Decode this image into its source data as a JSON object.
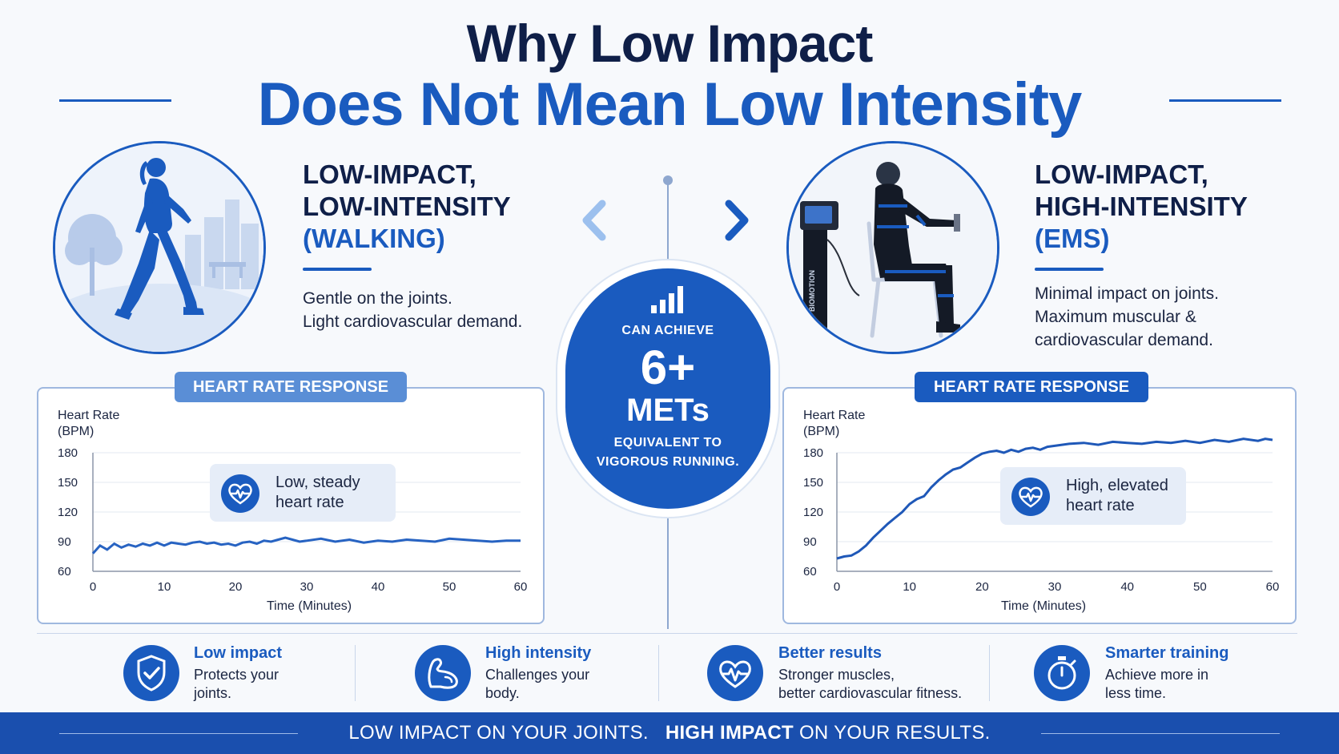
{
  "title": {
    "line1": "Why Low Impact",
    "line2": "Does Not Mean Low Intensity"
  },
  "colors": {
    "primary": "#1a5bbf",
    "navy": "#0f1f48",
    "footer": "#1a4fae"
  },
  "left": {
    "heading_line1": "LOW-IMPACT,",
    "heading_line2": "LOW-INTENSITY",
    "heading_line3": "(WALKING)",
    "text_line1": "Gentle on the joints.",
    "text_line2": "Light cardiovascular demand.",
    "icon": "walking-woman-icon"
  },
  "right": {
    "heading_line1": "LOW-IMPACT,",
    "heading_line2": "HIGH-INTENSITY",
    "heading_line3": "(EMS)",
    "text_line1": "Minimal impact on joints.",
    "text_line2": "Maximum muscular &",
    "text_line3": "cardiovascular demand.",
    "icon": "ems-training-icon",
    "machine_label": "BIOMOTION"
  },
  "center": {
    "line1": "CAN ACHIEVE",
    "big": "6+",
    "mets": "METs",
    "line2": "EQUIVALENT TO",
    "line3": "VIGOROUS RUNNING.",
    "icon": "bar-chart-icon"
  },
  "charts": {
    "left": {
      "tab": "HEART RATE RESPONSE",
      "ylabel_line1": "Heart Rate",
      "ylabel_line2": "(BPM)",
      "xlabel": "Time (Minutes)",
      "callout_line1": "Low, steady",
      "callout_line2": "heart rate",
      "icon": "heart-pulse-icon"
    },
    "right": {
      "tab": "HEART RATE RESPONSE",
      "ylabel_line1": "Heart Rate",
      "ylabel_line2": "(BPM)",
      "xlabel": "Time (Minutes)",
      "callout_line1": "High, elevated",
      "callout_line2": "heart rate",
      "icon": "heart-pulse-icon"
    }
  },
  "chart_data": [
    {
      "type": "line",
      "title": "HEART RATE RESPONSE",
      "xlabel": "Time (Minutes)",
      "ylabel": "Heart Rate (BPM)",
      "xlim": [
        0,
        60
      ],
      "ylim": [
        60,
        180
      ],
      "xticks": [
        0,
        10,
        20,
        30,
        40,
        50,
        60
      ],
      "yticks": [
        60,
        90,
        120,
        150,
        180
      ],
      "series": [
        {
          "x": [
            0,
            1,
            2,
            3,
            4,
            5,
            6,
            7,
            8,
            9,
            10,
            11,
            12,
            13,
            14,
            15,
            16,
            17,
            18,
            19,
            20,
            21,
            22,
            23,
            24,
            25,
            26,
            27,
            28,
            29,
            30,
            32,
            34,
            36,
            38,
            40,
            42,
            44,
            46,
            48,
            50,
            52,
            54,
            56,
            58,
            60
          ],
          "y": [
            78,
            86,
            82,
            88,
            84,
            87,
            85,
            88,
            86,
            89,
            86,
            89,
            88,
            87,
            89,
            90,
            88,
            89,
            87,
            88,
            86,
            89,
            90,
            88,
            91,
            90,
            92,
            94,
            92,
            90,
            91,
            93,
            90,
            92,
            89,
            91,
            90,
            92,
            91,
            90,
            93,
            92,
            91,
            90,
            91,
            91
          ]
        }
      ]
    },
    {
      "type": "line",
      "title": "HEART RATE RESPONSE",
      "xlabel": "Time (Minutes)",
      "ylabel": "Heart Rate (BPM)",
      "xlim": [
        0,
        60
      ],
      "ylim": [
        60,
        180
      ],
      "xticks": [
        0,
        10,
        20,
        30,
        40,
        50,
        60
      ],
      "yticks": [
        60,
        90,
        120,
        150,
        180
      ],
      "series": [
        {
          "x": [
            0,
            1,
            2,
            3,
            4,
            5,
            6,
            7,
            8,
            9,
            10,
            11,
            12,
            13,
            14,
            15,
            16,
            17,
            18,
            19,
            20,
            21,
            22,
            23,
            24,
            25,
            26,
            27,
            28,
            29,
            30,
            32,
            34,
            36,
            38,
            40,
            42,
            44,
            46,
            48,
            50,
            52,
            54,
            56,
            58,
            59,
            60
          ],
          "y": [
            73,
            75,
            76,
            80,
            86,
            94,
            101,
            108,
            114,
            120,
            128,
            133,
            136,
            145,
            152,
            158,
            163,
            165,
            170,
            175,
            179,
            181,
            182,
            180,
            183,
            181,
            184,
            185,
            183,
            186,
            187,
            189,
            190,
            188,
            191,
            190,
            189,
            191,
            190,
            192,
            190,
            193,
            191,
            194,
            192,
            194,
            193
          ]
        }
      ]
    }
  ],
  "features": [
    {
      "title": "Low impact",
      "line1": "Protects your",
      "line2": "joints.",
      "icon": "shield-check-icon"
    },
    {
      "title": "High intensity",
      "line1": "Challenges your",
      "line2": "body.",
      "icon": "flexed-bicep-icon"
    },
    {
      "title": "Better results",
      "line1": "Stronger muscles,",
      "line2": "better cardiovascular fitness.",
      "icon": "heart-pulse-icon"
    },
    {
      "title": "Smarter training",
      "line1": "Achieve more in",
      "line2": "less time.",
      "icon": "stopwatch-icon"
    }
  ],
  "footer": {
    "part1": "LOW IMPACT ON YOUR JOINTS.",
    "part2": "HIGH IMPACT",
    "part3": "ON YOUR RESULTS."
  }
}
